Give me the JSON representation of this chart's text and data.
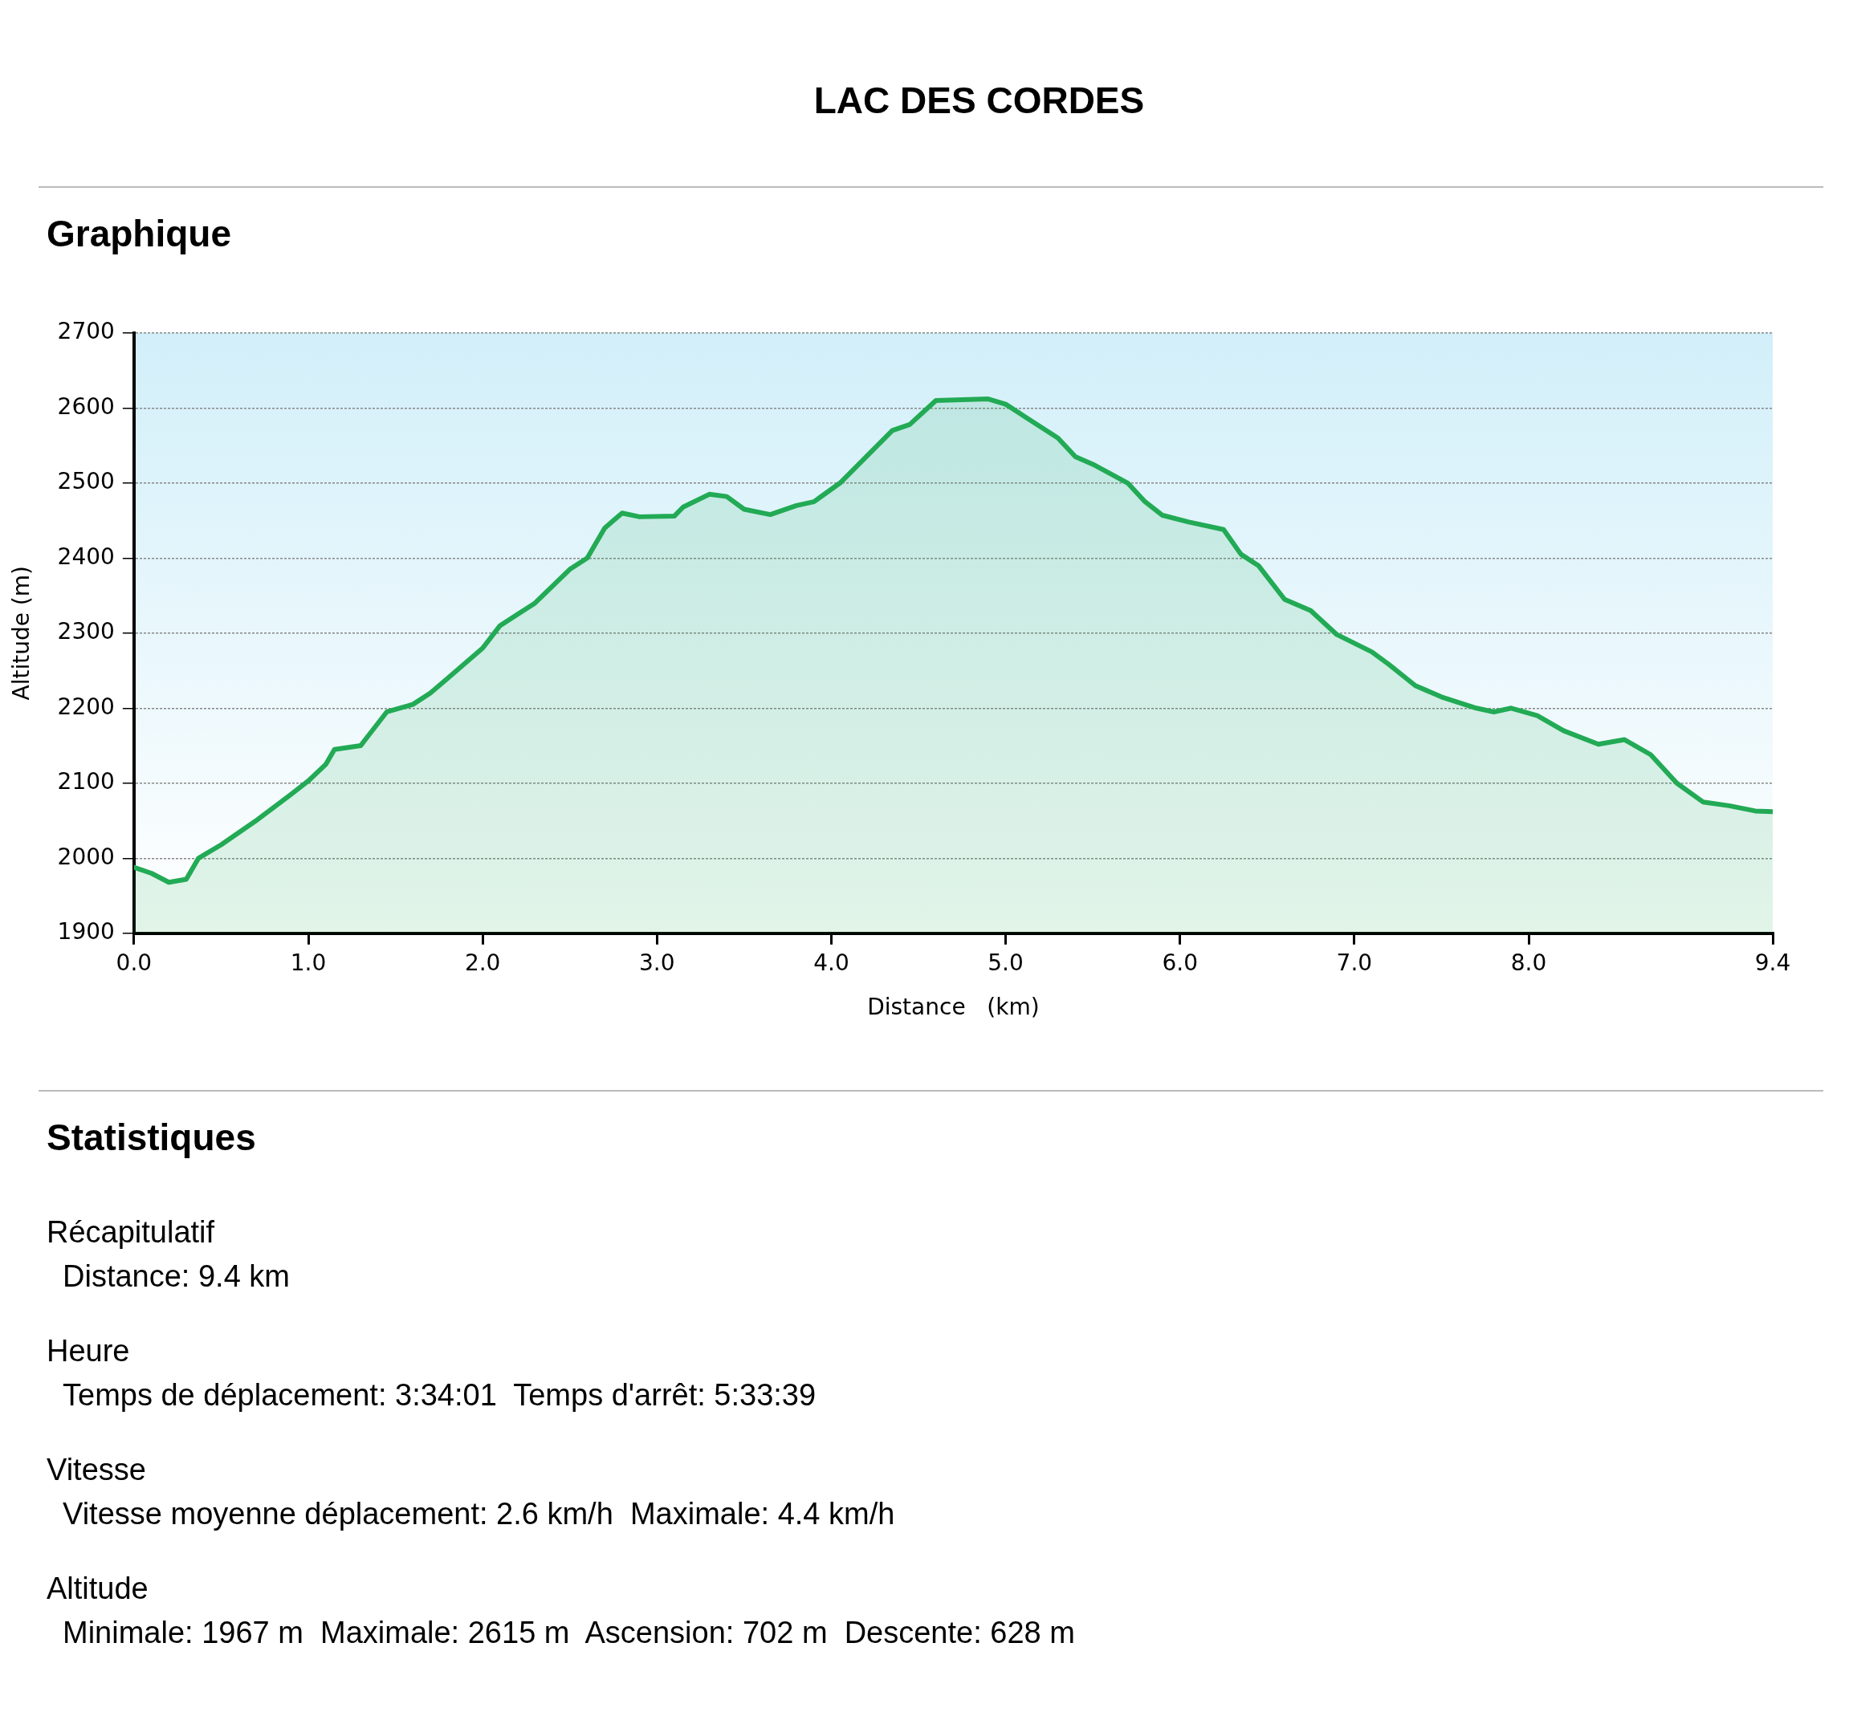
{
  "chart_data": {
    "type": "area",
    "title": "LAC DES CORDES",
    "subtitle": "Graphique",
    "xlabel": "Distance   (km)",
    "ylabel": "Altitude (m)",
    "x": [
      0.0,
      0.1,
      0.2,
      0.3,
      0.37,
      0.5,
      0.7,
      0.9,
      1.0,
      1.1,
      1.15,
      1.3,
      1.35,
      1.45,
      1.6,
      1.7,
      1.8,
      2.0,
      2.1,
      2.3,
      2.5,
      2.6,
      2.7,
      2.8,
      2.9,
      3.1,
      3.15,
      3.3,
      3.4,
      3.5,
      3.65,
      3.8,
      3.9,
      4.05,
      4.2,
      4.35,
      4.45,
      4.6,
      4.9,
      5.0,
      5.1,
      5.3,
      5.4,
      5.5,
      5.7,
      5.8,
      5.9,
      6.05,
      6.25,
      6.35,
      6.45,
      6.6,
      6.75,
      6.9,
      7.1,
      7.2,
      7.35,
      7.5,
      7.7,
      7.8,
      7.9,
      8.05,
      8.2,
      8.4,
      8.55,
      8.7,
      8.85,
      9.0,
      9.15,
      9.3,
      9.4
    ],
    "series": [
      {
        "color": "#22aa55",
        "values": [
          1988,
          1980,
          1968,
          1972,
          2000,
          2018,
          2050,
          2085,
          2103,
          2125,
          2145,
          2150,
          2165,
          2195,
          2205,
          2220,
          2240,
          2280,
          2310,
          2340,
          2385,
          2400,
          2440,
          2460,
          2455,
          2456,
          2468,
          2485,
          2482,
          2465,
          2458,
          2470,
          2475,
          2500,
          2535,
          2570,
          2578,
          2610,
          2612,
          2605,
          2590,
          2560,
          2535,
          2525,
          2500,
          2475,
          2457,
          2448,
          2438,
          2405,
          2390,
          2345,
          2330,
          2298,
          2275,
          2258,
          2230,
          2215,
          2200,
          2195,
          2200,
          2190,
          2170,
          2152,
          2158,
          2138,
          2100,
          2075,
          2070,
          2063,
          2062
        ]
      }
    ],
    "xlim": [
      0,
      9.4
    ],
    "xticks": [
      {
        "value": 0,
        "label": "0.0"
      },
      {
        "value": 1,
        "label": "1.0"
      },
      {
        "value": 2,
        "label": "2.0"
      },
      {
        "value": 3,
        "label": "3.0"
      },
      {
        "value": 4,
        "label": "4.0"
      },
      {
        "value": 5,
        "label": "5.0"
      },
      {
        "value": 6,
        "label": "6.0"
      },
      {
        "value": 7,
        "label": "7.0"
      },
      {
        "value": 8,
        "label": "8.0"
      },
      9.4
    ],
    "ylim": [
      1900,
      2700
    ],
    "yticks": [
      1900,
      2000,
      2100,
      2200,
      2300,
      2400,
      2500,
      2600,
      2700
    ],
    "grid": "y",
    "legend": false,
    "annotations": [
      "Statistiques",
      "Récapitulatif",
      "Distance: 9.4 km",
      "Heure",
      "Temps de déplacement: 3:34:01  Temps d'arrêt: 5:33:39",
      "Vitesse",
      "Vitesse moyenne déplacement: 2.6 km/h  Maximale: 4.4 km/h",
      "Altitude",
      "Minimale: 1967 m  Maximale: 2615 m  Ascension: 702 m  Descente: 628 m"
    ]
  }
}
